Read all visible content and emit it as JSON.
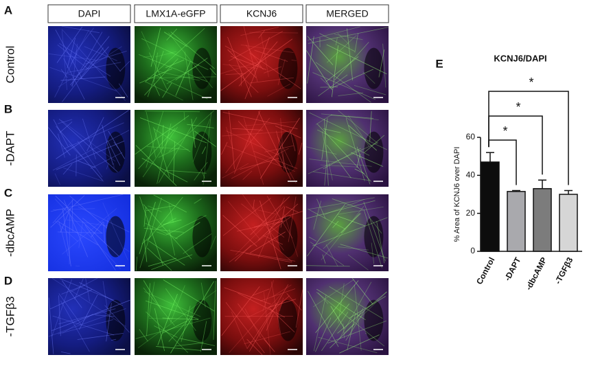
{
  "panels": {
    "letters": [
      "A",
      "B",
      "C",
      "D",
      "E"
    ],
    "columns": [
      "DAPI",
      "LMX1A-eGFP",
      "KCNJ6",
      "MERGED"
    ],
    "rows": [
      "Control",
      "-DAPT",
      "-dbcAMP",
      "-TGFβ3"
    ]
  },
  "chart_data": {
    "type": "bar",
    "title": "KCNJ6/DAPI",
    "y_label": "% Area of KCNJ6 over DAPI",
    "categories": [
      "Control",
      "-DAPT",
      "-dbcAMP",
      "-TGFβ3"
    ],
    "values": [
      47,
      31.5,
      33,
      30
    ],
    "errors": [
      5,
      0.5,
      4.5,
      2
    ],
    "colors": [
      "#0d0d0d",
      "#a9a9ad",
      "#7c7c7c",
      "#d6d6d6"
    ],
    "ylim": [
      0,
      60
    ],
    "yticks": [
      0,
      20,
      40,
      60
    ],
    "significance_labels": [
      "*",
      "*",
      "*"
    ]
  }
}
